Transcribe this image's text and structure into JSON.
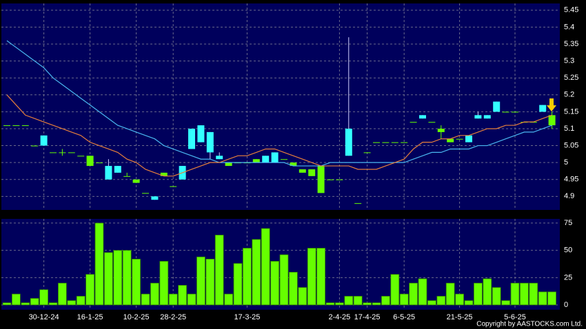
{
  "chart_data": [
    {
      "type": "candlestick",
      "up_color": "#33ffff",
      "down_color": "#66ff00",
      "open": [
        5.11,
        5.11,
        5.11,
        5.05,
        5.05,
        5.03,
        5.03,
        5.03,
        5.02,
        5.02,
        5.0,
        4.95,
        4.97,
        4.96,
        4.95,
        4.91,
        4.89,
        4.97,
        4.93,
        4.95,
        5.04,
        5.06,
        5.03,
        5.01,
        5.0,
        5.0,
        5.0,
        5.01,
        5.0,
        5.0,
        5.01,
        5.0,
        4.98,
        4.98,
        4.99,
        4.95,
        4.95,
        5.02,
        4.88,
        5.03,
        5.06,
        5.06,
        5.06,
        5.06,
        5.12,
        5.13,
        5.12,
        5.1,
        5.07,
        5.07,
        5.06,
        5.13,
        5.13,
        5.15,
        5.15,
        5.15,
        5.12,
        5.12,
        5.15,
        5.14
      ],
      "high": [
        5.11,
        5.11,
        5.11,
        5.05,
        5.08,
        5.03,
        5.04,
        5.03,
        5.02,
        5.02,
        5.0,
        5.01,
        4.99,
        4.97,
        4.95,
        4.91,
        4.9,
        4.97,
        4.93,
        4.99,
        5.1,
        5.11,
        5.09,
        5.03,
        5.0,
        5.0,
        5.0,
        5.01,
        5.02,
        5.03,
        5.01,
        5.0,
        4.98,
        4.98,
        4.99,
        4.95,
        4.95,
        5.37,
        4.88,
        5.03,
        5.06,
        5.06,
        5.06,
        5.06,
        5.12,
        5.14,
        5.12,
        5.11,
        5.07,
        5.07,
        5.08,
        5.15,
        5.14,
        5.18,
        5.15,
        5.15,
        5.12,
        5.12,
        5.17,
        5.15
      ],
      "low": [
        5.11,
        5.11,
        5.11,
        5.05,
        5.05,
        5.03,
        5.02,
        5.03,
        5.02,
        4.99,
        5.0,
        4.95,
        4.97,
        4.96,
        4.94,
        4.91,
        4.89,
        4.96,
        4.93,
        4.95,
        5.04,
        5.06,
        5.01,
        5.01,
        4.99,
        5.0,
        5.0,
        5.0,
        5.0,
        5.0,
        5.01,
        4.99,
        4.97,
        4.96,
        4.91,
        4.95,
        4.95,
        5.02,
        4.88,
        5.03,
        5.06,
        5.06,
        5.06,
        5.06,
        5.12,
        5.13,
        5.12,
        5.07,
        5.06,
        5.07,
        5.06,
        5.13,
        5.13,
        5.15,
        5.15,
        5.15,
        5.12,
        5.12,
        5.15,
        5.1
      ],
      "close": [
        5.11,
        5.11,
        5.11,
        5.05,
        5.08,
        5.03,
        5.03,
        5.03,
        5.02,
        4.99,
        5.0,
        4.99,
        4.99,
        4.96,
        4.94,
        4.91,
        4.9,
        4.96,
        4.93,
        4.99,
        5.1,
        5.11,
        5.09,
        5.02,
        4.99,
        5.0,
        5.0,
        5.0,
        5.02,
        5.03,
        5.01,
        4.99,
        4.97,
        4.96,
        4.91,
        4.95,
        4.95,
        5.1,
        4.88,
        5.03,
        5.06,
        5.06,
        5.06,
        5.06,
        5.12,
        5.14,
        5.12,
        5.09,
        5.06,
        5.07,
        5.08,
        5.14,
        5.14,
        5.18,
        5.15,
        5.15,
        5.12,
        5.12,
        5.17,
        5.11
      ],
      "overlays": [
        {
          "color": "#4ab8f0",
          "values": [
            5.36,
            5.34,
            5.32,
            5.3,
            5.28,
            5.25,
            5.23,
            5.21,
            5.19,
            5.17,
            5.15,
            5.13,
            5.11,
            5.1,
            5.09,
            5.08,
            5.07,
            5.05,
            5.04,
            5.03,
            5.02,
            5.01,
            5.01,
            5.0,
            5.0,
            5.0,
            5.0,
            5.0,
            5.0,
            5.0,
            5.0,
            4.99,
            4.99,
            4.99,
            4.99,
            5.0,
            5.0,
            5.0,
            5.0,
            5.0,
            5.0,
            5.0,
            5.0,
            5.0,
            5.01,
            5.02,
            5.03,
            5.03,
            5.04,
            5.04,
            5.04,
            5.05,
            5.05,
            5.06,
            5.07,
            5.08,
            5.09,
            5.09,
            5.1,
            5.11
          ]
        },
        {
          "color": "#e8803a",
          "values": [
            5.2,
            5.17,
            5.14,
            5.13,
            5.12,
            5.11,
            5.1,
            5.09,
            5.08,
            5.06,
            5.05,
            5.04,
            5.03,
            5.01,
            5.0,
            4.98,
            4.97,
            4.96,
            4.96,
            4.97,
            4.98,
            4.99,
            5.0,
            5.0,
            5.01,
            5.02,
            5.02,
            5.03,
            5.04,
            5.04,
            5.03,
            5.02,
            5.01,
            5.0,
            4.99,
            4.99,
            4.99,
            4.99,
            4.98,
            4.98,
            4.98,
            4.99,
            5.0,
            5.01,
            5.04,
            5.06,
            5.06,
            5.07,
            5.07,
            5.08,
            5.08,
            5.09,
            5.1,
            5.1,
            5.11,
            5.11,
            5.12,
            5.12,
            5.13,
            5.14
          ]
        }
      ],
      "ylim": [
        4.86,
        5.47
      ],
      "yticks": [
        4.9,
        4.95,
        5,
        5.05,
        5.1,
        5.15,
        5.2,
        5.25,
        5.3,
        5.35,
        5.4,
        5.45
      ],
      "grid": true
    },
    {
      "type": "bar",
      "color": "#66ff00",
      "categories": [
        null,
        null,
        null,
        null,
        "30-12-24",
        null,
        null,
        null,
        null,
        "16-1-25",
        null,
        null,
        null,
        null,
        "10-2-25",
        null,
        null,
        null,
        "28-2-25",
        null,
        null,
        null,
        null,
        null,
        null,
        null,
        "17-3-25",
        null,
        null,
        null,
        null,
        null,
        null,
        null,
        null,
        null,
        "2-4-25",
        null,
        null,
        "17-4-25",
        null,
        null,
        null,
        "6-5-25",
        null,
        null,
        null,
        null,
        null,
        "21-5-25",
        null,
        null,
        null,
        null,
        null,
        "5-6-25",
        null,
        null,
        null,
        null
      ],
      "values": [
        2,
        10,
        2,
        6,
        14,
        2,
        20,
        4,
        8,
        28,
        75,
        48,
        50,
        50,
        42,
        10,
        20,
        40,
        10,
        18,
        10,
        44,
        42,
        64,
        10,
        38,
        52,
        60,
        70,
        40,
        46,
        30,
        16,
        52,
        52,
        2,
        2,
        8,
        8,
        2,
        2,
        8,
        28,
        10,
        20,
        24,
        4,
        8,
        20,
        10,
        4,
        20,
        24,
        16,
        4,
        20,
        20,
        20,
        12,
        12
      ],
      "ylim": [
        -4.4,
        78.8
      ],
      "yticks": [
        0,
        25,
        50,
        75
      ],
      "grid": true,
      "copyright": "Copyright by AASTOCKS.com Ltd."
    }
  ]
}
